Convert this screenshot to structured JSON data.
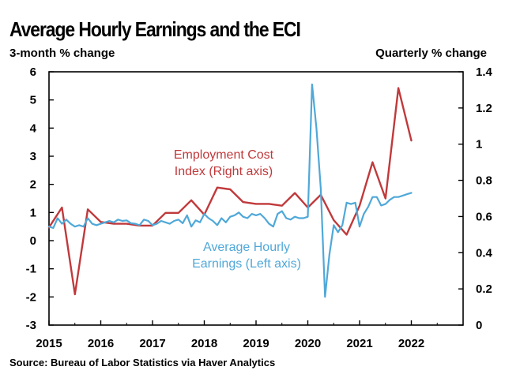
{
  "title": "Average Hourly Earnings and the ECI",
  "left_axis_title": "3-month % change",
  "right_axis_title": "Quarterly % change",
  "source": "Source: Bureau of Labor Statistics via Haver Analytics",
  "colors": {
    "eci": "#c0393b",
    "ahe": "#4fa8d8",
    "axis": "#000000"
  },
  "chart_data": {
    "type": "line",
    "title": "Average Hourly Earnings and the ECI",
    "xlabel": "",
    "x_ticks": [
      "2015",
      "2016",
      "2017",
      "2018",
      "2019",
      "2020",
      "2021",
      "2022"
    ],
    "xlim": [
      2015,
      2023
    ],
    "y_left": {
      "label": "3-month % change",
      "lim": [
        -3,
        6
      ],
      "ticks": [
        "6",
        "5",
        "4",
        "3",
        "2",
        "1",
        "0",
        "-1",
        "-2",
        "-3"
      ]
    },
    "y_right": {
      "label": "Quarterly % change",
      "lim": [
        0,
        1.4
      ],
      "ticks": [
        "1.4",
        "1.2",
        "1",
        "0.8",
        "0.6",
        "0.4",
        "0.2",
        "0"
      ]
    },
    "grid": false,
    "series": [
      {
        "name": "Employment Cost Index (Right axis)",
        "axis": "right",
        "label_lines": [
          "Employment Cost",
          "Index (Right axis)"
        ],
        "x": [
          2015.0,
          2015.25,
          2015.5,
          2015.75,
          2016.0,
          2016.25,
          2016.5,
          2016.75,
          2017.0,
          2017.25,
          2017.5,
          2017.75,
          2018.0,
          2018.25,
          2018.5,
          2018.75,
          2019.0,
          2019.25,
          2019.5,
          2019.75,
          2020.0,
          2020.25,
          2020.5,
          2020.75,
          2021.0,
          2021.25,
          2021.5,
          2021.75,
          2022.0
        ],
        "values": [
          0.54,
          0.65,
          0.17,
          0.64,
          0.57,
          0.56,
          0.56,
          0.55,
          0.55,
          0.62,
          0.62,
          0.69,
          0.61,
          0.76,
          0.75,
          0.68,
          0.67,
          0.67,
          0.66,
          0.73,
          0.65,
          0.72,
          0.58,
          0.5,
          0.66,
          0.9,
          0.7,
          1.31,
          1.02
        ]
      },
      {
        "name": "Average Hourly Earnings (Left axis)",
        "axis": "left",
        "label_lines": [
          "Average Hourly",
          "Earnings (Left axis)"
        ],
        "x": [
          2015.0,
          2015.083,
          2015.167,
          2015.25,
          2015.333,
          2015.417,
          2015.5,
          2015.583,
          2015.667,
          2015.75,
          2015.833,
          2015.917,
          2016.0,
          2016.083,
          2016.167,
          2016.25,
          2016.333,
          2016.417,
          2016.5,
          2016.583,
          2016.667,
          2016.75,
          2016.833,
          2016.917,
          2017.0,
          2017.083,
          2017.167,
          2017.25,
          2017.333,
          2017.417,
          2017.5,
          2017.583,
          2017.667,
          2017.75,
          2017.833,
          2017.917,
          2018.0,
          2018.083,
          2018.167,
          2018.25,
          2018.333,
          2018.417,
          2018.5,
          2018.583,
          2018.667,
          2018.75,
          2018.833,
          2018.917,
          2019.0,
          2019.083,
          2019.167,
          2019.25,
          2019.333,
          2019.417,
          2019.5,
          2019.583,
          2019.667,
          2019.75,
          2019.833,
          2019.917,
          2020.0,
          2020.083,
          2020.167,
          2020.25,
          2020.333,
          2020.417,
          2020.5,
          2020.583,
          2020.667,
          2020.75,
          2020.833,
          2020.917,
          2021.0,
          2021.083,
          2021.167,
          2021.25,
          2021.333,
          2021.417,
          2021.5,
          2021.583,
          2021.667,
          2021.75,
          2021.833,
          2021.917,
          2022.0
        ],
        "values": [
          0.5,
          0.45,
          0.8,
          0.6,
          0.75,
          0.6,
          0.5,
          0.55,
          0.5,
          0.8,
          0.6,
          0.55,
          0.6,
          0.65,
          0.7,
          0.65,
          0.75,
          0.7,
          0.72,
          0.62,
          0.6,
          0.55,
          0.75,
          0.7,
          0.55,
          0.6,
          0.7,
          0.65,
          0.6,
          0.7,
          0.75,
          0.62,
          0.9,
          0.5,
          0.72,
          0.65,
          0.95,
          0.8,
          0.7,
          0.55,
          0.8,
          0.65,
          0.85,
          0.9,
          1.0,
          0.85,
          0.8,
          0.95,
          0.9,
          0.95,
          0.8,
          0.6,
          0.5,
          0.95,
          1.05,
          0.8,
          0.75,
          0.85,
          0.8,
          0.8,
          0.85,
          5.55,
          4.0,
          1.85,
          -2.0,
          -0.5,
          0.55,
          0.3,
          0.55,
          1.35,
          1.3,
          1.35,
          0.5,
          0.95,
          1.2,
          1.55,
          1.55,
          1.25,
          1.3,
          1.45,
          1.55,
          1.55,
          1.6,
          1.65,
          1.7
        ]
      }
    ]
  }
}
